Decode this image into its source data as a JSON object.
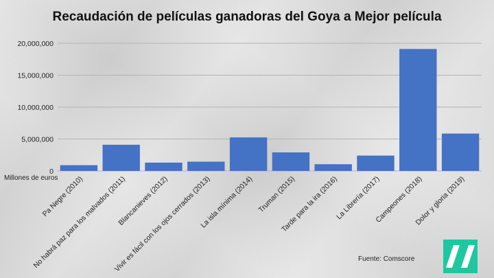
{
  "chart_data": {
    "type": "bar",
    "title": "Recaudación de películas ganadoras del Goya a Mejor película",
    "ylabel": "Millones de euros",
    "ylim": [
      0,
      20000000
    ],
    "yticks": [
      "0",
      "5,000,000",
      "10,000,000",
      "15,000,000",
      "20,000,000"
    ],
    "ytick_values": [
      0,
      5000000,
      10000000,
      15000000,
      20000000
    ],
    "categories": [
      "Pa Negre (2010)",
      "No habrá paz para los malvados (2011)",
      "Blancanieves (2012)",
      "Vivir es fácil con los ojos cerrados (2013)",
      "La isla mínima (2014)",
      "Truman (2015)",
      "Tarde para la ira (2016)",
      "La Librería (2017)",
      "Campeones (2018)",
      "Dolor y gloria (2019)"
    ],
    "values": [
      900000,
      4100000,
      1300000,
      1450000,
      5250000,
      2900000,
      1050000,
      2400000,
      19100000,
      5850000
    ],
    "bar_color": "#4472c4",
    "grid": true,
    "source": "Fuente: Comscore"
  },
  "logo": {
    "name": "huffpost-logo-icon",
    "color": "#1fc7a0"
  }
}
